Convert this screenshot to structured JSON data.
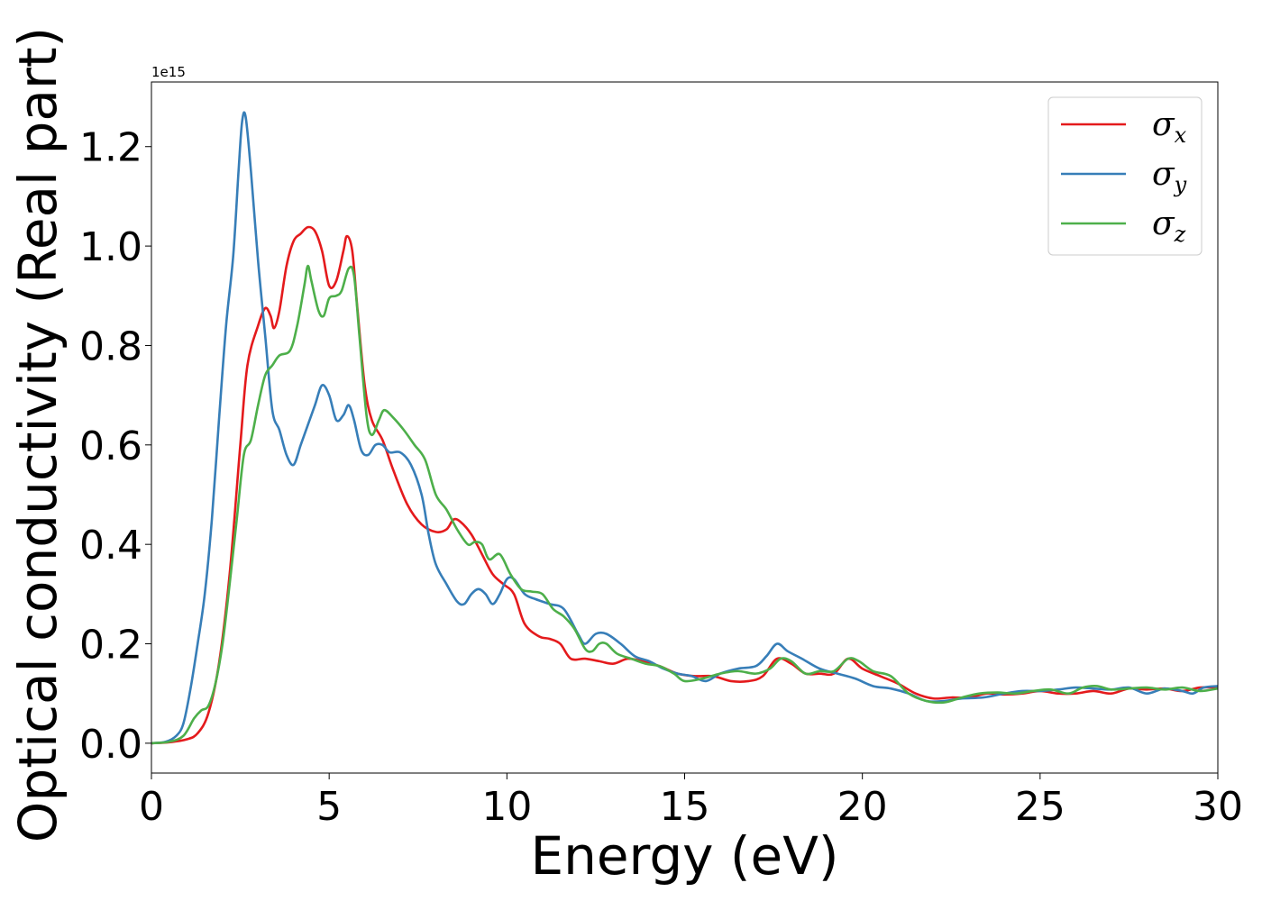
{
  "chart_data": {
    "type": "line",
    "xlabel": "Energy (eV)",
    "ylabel": "Optical conductivity (Real part)",
    "offset_text": "1e15",
    "xlim": [
      0,
      30
    ],
    "ylim": [
      -0.06,
      1.33
    ],
    "xticks": [
      0,
      5,
      10,
      15,
      20,
      25,
      30
    ],
    "xtick_labels": [
      "0",
      "5",
      "10",
      "15",
      "20",
      "25",
      "30"
    ],
    "yticks": [
      0.0,
      0.2,
      0.4,
      0.6,
      0.8,
      1.0,
      1.2
    ],
    "ytick_labels": [
      "0.0",
      "0.2",
      "0.4",
      "0.6",
      "0.8",
      "1.0",
      "1.2"
    ],
    "grid": false,
    "legend_position": "top-right",
    "series": [
      {
        "name": "σx",
        "symbol": "σ",
        "subscript": "x",
        "color": "#e41a1c",
        "points": [
          [
            0,
            0
          ],
          [
            0.5,
            0.002
          ],
          [
            1.0,
            0.008
          ],
          [
            1.3,
            0.02
          ],
          [
            1.6,
            0.06
          ],
          [
            1.9,
            0.16
          ],
          [
            2.2,
            0.34
          ],
          [
            2.5,
            0.6
          ],
          [
            2.7,
            0.76
          ],
          [
            3.0,
            0.84
          ],
          [
            3.2,
            0.875
          ],
          [
            3.35,
            0.86
          ],
          [
            3.45,
            0.835
          ],
          [
            3.6,
            0.87
          ],
          [
            3.8,
            0.96
          ],
          [
            4.0,
            1.01
          ],
          [
            4.2,
            1.025
          ],
          [
            4.4,
            1.038
          ],
          [
            4.6,
            1.03
          ],
          [
            4.8,
            0.99
          ],
          [
            5.0,
            0.92
          ],
          [
            5.2,
            0.93
          ],
          [
            5.4,
            0.99
          ],
          [
            5.5,
            1.02
          ],
          [
            5.65,
            0.99
          ],
          [
            5.8,
            0.87
          ],
          [
            6.0,
            0.72
          ],
          [
            6.2,
            0.65
          ],
          [
            6.5,
            0.61
          ],
          [
            6.8,
            0.55
          ],
          [
            7.2,
            0.48
          ],
          [
            7.6,
            0.44
          ],
          [
            8.0,
            0.425
          ],
          [
            8.3,
            0.43
          ],
          [
            8.5,
            0.45
          ],
          [
            8.7,
            0.445
          ],
          [
            9.0,
            0.42
          ],
          [
            9.3,
            0.38
          ],
          [
            9.6,
            0.34
          ],
          [
            9.9,
            0.32
          ],
          [
            10.2,
            0.3
          ],
          [
            10.5,
            0.24
          ],
          [
            10.9,
            0.215
          ],
          [
            11.2,
            0.21
          ],
          [
            11.5,
            0.2
          ],
          [
            11.8,
            0.17
          ],
          [
            12.2,
            0.17
          ],
          [
            12.6,
            0.165
          ],
          [
            13.0,
            0.16
          ],
          [
            13.4,
            0.17
          ],
          [
            13.8,
            0.165
          ],
          [
            14.3,
            0.155
          ],
          [
            14.8,
            0.14
          ],
          [
            15.3,
            0.135
          ],
          [
            15.8,
            0.135
          ],
          [
            16.3,
            0.125
          ],
          [
            16.8,
            0.125
          ],
          [
            17.2,
            0.135
          ],
          [
            17.6,
            0.17
          ],
          [
            18.0,
            0.16
          ],
          [
            18.4,
            0.14
          ],
          [
            18.8,
            0.14
          ],
          [
            19.2,
            0.14
          ],
          [
            19.6,
            0.17
          ],
          [
            20.0,
            0.15
          ],
          [
            20.5,
            0.135
          ],
          [
            21.0,
            0.12
          ],
          [
            21.5,
            0.1
          ],
          [
            22.0,
            0.09
          ],
          [
            22.5,
            0.092
          ],
          [
            23.0,
            0.092
          ],
          [
            23.5,
            0.1
          ],
          [
            24.0,
            0.098
          ],
          [
            24.5,
            0.1
          ],
          [
            25.0,
            0.105
          ],
          [
            25.5,
            0.1
          ],
          [
            26.0,
            0.1
          ],
          [
            26.5,
            0.105
          ],
          [
            27.0,
            0.1
          ],
          [
            27.5,
            0.11
          ],
          [
            28.0,
            0.108
          ],
          [
            28.5,
            0.11
          ],
          [
            29.0,
            0.105
          ],
          [
            29.5,
            0.112
          ],
          [
            30.0,
            0.112
          ]
        ]
      },
      {
        "name": "σy",
        "symbol": "σ",
        "subscript": "y",
        "color": "#377eb8",
        "points": [
          [
            0,
            0
          ],
          [
            0.4,
            0.003
          ],
          [
            0.7,
            0.015
          ],
          [
            0.9,
            0.04
          ],
          [
            1.1,
            0.11
          ],
          [
            1.3,
            0.2
          ],
          [
            1.5,
            0.3
          ],
          [
            1.7,
            0.45
          ],
          [
            1.9,
            0.65
          ],
          [
            2.1,
            0.84
          ],
          [
            2.3,
            0.98
          ],
          [
            2.45,
            1.15
          ],
          [
            2.55,
            1.25
          ],
          [
            2.65,
            1.26
          ],
          [
            2.8,
            1.15
          ],
          [
            3.0,
            0.97
          ],
          [
            3.2,
            0.82
          ],
          [
            3.4,
            0.67
          ],
          [
            3.6,
            0.63
          ],
          [
            3.8,
            0.58
          ],
          [
            4.0,
            0.56
          ],
          [
            4.2,
            0.6
          ],
          [
            4.4,
            0.64
          ],
          [
            4.6,
            0.68
          ],
          [
            4.8,
            0.72
          ],
          [
            5.0,
            0.7
          ],
          [
            5.2,
            0.65
          ],
          [
            5.4,
            0.66
          ],
          [
            5.55,
            0.68
          ],
          [
            5.7,
            0.65
          ],
          [
            5.9,
            0.59
          ],
          [
            6.1,
            0.58
          ],
          [
            6.3,
            0.6
          ],
          [
            6.5,
            0.6
          ],
          [
            6.7,
            0.585
          ],
          [
            7.0,
            0.585
          ],
          [
            7.3,
            0.56
          ],
          [
            7.6,
            0.5
          ],
          [
            7.8,
            0.42
          ],
          [
            8.0,
            0.36
          ],
          [
            8.3,
            0.32
          ],
          [
            8.6,
            0.285
          ],
          [
            8.8,
            0.28
          ],
          [
            9.0,
            0.3
          ],
          [
            9.2,
            0.31
          ],
          [
            9.4,
            0.3
          ],
          [
            9.6,
            0.28
          ],
          [
            9.8,
            0.3
          ],
          [
            10.0,
            0.33
          ],
          [
            10.2,
            0.33
          ],
          [
            10.5,
            0.3
          ],
          [
            10.8,
            0.29
          ],
          [
            11.2,
            0.28
          ],
          [
            11.6,
            0.27
          ],
          [
            12.0,
            0.22
          ],
          [
            12.2,
            0.2
          ],
          [
            12.5,
            0.22
          ],
          [
            12.8,
            0.22
          ],
          [
            13.2,
            0.2
          ],
          [
            13.6,
            0.175
          ],
          [
            14.0,
            0.165
          ],
          [
            14.4,
            0.15
          ],
          [
            14.8,
            0.14
          ],
          [
            15.2,
            0.135
          ],
          [
            15.6,
            0.125
          ],
          [
            16.0,
            0.14
          ],
          [
            16.5,
            0.15
          ],
          [
            17.0,
            0.155
          ],
          [
            17.3,
            0.175
          ],
          [
            17.6,
            0.2
          ],
          [
            17.9,
            0.185
          ],
          [
            18.3,
            0.17
          ],
          [
            18.8,
            0.15
          ],
          [
            19.3,
            0.14
          ],
          [
            19.8,
            0.13
          ],
          [
            20.3,
            0.115
          ],
          [
            20.8,
            0.11
          ],
          [
            21.3,
            0.1
          ],
          [
            21.8,
            0.085
          ],
          [
            22.3,
            0.085
          ],
          [
            22.8,
            0.09
          ],
          [
            23.4,
            0.092
          ],
          [
            24.0,
            0.1
          ],
          [
            24.5,
            0.105
          ],
          [
            25.0,
            0.105
          ],
          [
            25.5,
            0.108
          ],
          [
            26.0,
            0.112
          ],
          [
            26.5,
            0.11
          ],
          [
            27.0,
            0.108
          ],
          [
            27.5,
            0.112
          ],
          [
            28.0,
            0.1
          ],
          [
            28.5,
            0.11
          ],
          [
            29.0,
            0.105
          ],
          [
            29.3,
            0.1
          ],
          [
            29.6,
            0.112
          ],
          [
            30.0,
            0.115
          ]
        ]
      },
      {
        "name": "σz",
        "symbol": "σ",
        "subscript": "z",
        "color": "#4daf4a",
        "points": [
          [
            0,
            0
          ],
          [
            0.5,
            0.003
          ],
          [
            0.9,
            0.015
          ],
          [
            1.2,
            0.05
          ],
          [
            1.4,
            0.066
          ],
          [
            1.6,
            0.075
          ],
          [
            1.8,
            0.12
          ],
          [
            2.0,
            0.2
          ],
          [
            2.2,
            0.32
          ],
          [
            2.4,
            0.45
          ],
          [
            2.6,
            0.58
          ],
          [
            2.8,
            0.61
          ],
          [
            3.0,
            0.68
          ],
          [
            3.2,
            0.74
          ],
          [
            3.4,
            0.76
          ],
          [
            3.6,
            0.78
          ],
          [
            3.9,
            0.79
          ],
          [
            4.1,
            0.84
          ],
          [
            4.3,
            0.92
          ],
          [
            4.4,
            0.96
          ],
          [
            4.5,
            0.93
          ],
          [
            4.7,
            0.87
          ],
          [
            4.85,
            0.86
          ],
          [
            5.0,
            0.895
          ],
          [
            5.2,
            0.9
          ],
          [
            5.35,
            0.91
          ],
          [
            5.55,
            0.955
          ],
          [
            5.7,
            0.94
          ],
          [
            5.85,
            0.82
          ],
          [
            6.05,
            0.66
          ],
          [
            6.2,
            0.62
          ],
          [
            6.4,
            0.65
          ],
          [
            6.55,
            0.67
          ],
          [
            6.8,
            0.655
          ],
          [
            7.1,
            0.63
          ],
          [
            7.4,
            0.6
          ],
          [
            7.7,
            0.57
          ],
          [
            8.0,
            0.5
          ],
          [
            8.3,
            0.47
          ],
          [
            8.6,
            0.43
          ],
          [
            8.9,
            0.4
          ],
          [
            9.1,
            0.405
          ],
          [
            9.3,
            0.4
          ],
          [
            9.5,
            0.37
          ],
          [
            9.8,
            0.38
          ],
          [
            10.1,
            0.34
          ],
          [
            10.4,
            0.31
          ],
          [
            10.7,
            0.305
          ],
          [
            11.0,
            0.3
          ],
          [
            11.3,
            0.27
          ],
          [
            11.6,
            0.255
          ],
          [
            11.9,
            0.23
          ],
          [
            12.2,
            0.19
          ],
          [
            12.4,
            0.185
          ],
          [
            12.6,
            0.2
          ],
          [
            12.8,
            0.2
          ],
          [
            13.1,
            0.18
          ],
          [
            13.5,
            0.17
          ],
          [
            13.9,
            0.16
          ],
          [
            14.3,
            0.155
          ],
          [
            14.7,
            0.14
          ],
          [
            15.0,
            0.125
          ],
          [
            15.5,
            0.13
          ],
          [
            16.0,
            0.14
          ],
          [
            16.5,
            0.145
          ],
          [
            17.0,
            0.14
          ],
          [
            17.4,
            0.15
          ],
          [
            17.7,
            0.17
          ],
          [
            18.0,
            0.165
          ],
          [
            18.4,
            0.14
          ],
          [
            18.8,
            0.145
          ],
          [
            19.2,
            0.145
          ],
          [
            19.6,
            0.17
          ],
          [
            19.9,
            0.165
          ],
          [
            20.3,
            0.145
          ],
          [
            20.8,
            0.135
          ],
          [
            21.3,
            0.1
          ],
          [
            21.8,
            0.085
          ],
          [
            22.3,
            0.082
          ],
          [
            22.8,
            0.092
          ],
          [
            23.3,
            0.1
          ],
          [
            23.8,
            0.102
          ],
          [
            24.3,
            0.1
          ],
          [
            24.8,
            0.105
          ],
          [
            25.3,
            0.108
          ],
          [
            25.8,
            0.1
          ],
          [
            26.2,
            0.112
          ],
          [
            26.6,
            0.115
          ],
          [
            27.0,
            0.108
          ],
          [
            27.5,
            0.11
          ],
          [
            28.0,
            0.112
          ],
          [
            28.5,
            0.108
          ],
          [
            29.0,
            0.112
          ],
          [
            29.5,
            0.105
          ],
          [
            30.0,
            0.11
          ]
        ]
      }
    ]
  }
}
